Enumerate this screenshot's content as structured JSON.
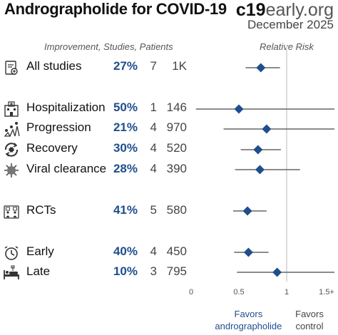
{
  "header": {
    "title": "Andrographolide for COVID-19",
    "brand_bold": "c19",
    "brand_light": "early.org",
    "date": "December 2025"
  },
  "columns": {
    "left": "Improvement, Studies, Patients",
    "right": "Relative Risk"
  },
  "colors": {
    "accent": "#1f4e8c",
    "whisker": "#666666",
    "refline": "#dcdcdc"
  },
  "chart_data": {
    "type": "forest",
    "xlim": [
      0,
      1.5
    ],
    "x_ticks": [
      "0",
      "0.5",
      "1",
      "1.5+"
    ],
    "favors_left": [
      "Favors",
      "andrographolide"
    ],
    "favors_right": [
      "Favors",
      "control"
    ],
    "rows": [
      {
        "id": "all-studies",
        "label": "All studies",
        "icon": "document-study-icon",
        "improvement": "27%",
        "studies": "7",
        "patients": "1K",
        "rr": 0.73,
        "lo": 0.57,
        "hi": 0.93
      },
      {
        "id": "hospitalization",
        "label": "Hospitalization",
        "icon": "hospital-icon",
        "improvement": "50%",
        "studies": "1",
        "patients": "146",
        "rr": 0.5,
        "lo": 0.05,
        "hi": 1.5
      },
      {
        "id": "progression",
        "label": "Progression",
        "icon": "progression-icon",
        "improvement": "21%",
        "studies": "4",
        "patients": "970",
        "rr": 0.79,
        "lo": 0.34,
        "hi": 1.5
      },
      {
        "id": "recovery",
        "label": "Recovery",
        "icon": "recovery-icon",
        "improvement": "30%",
        "studies": "4",
        "patients": "520",
        "rr": 0.7,
        "lo": 0.52,
        "hi": 0.94
      },
      {
        "id": "viral-clearance",
        "label": "Viral clearance",
        "icon": "virus-icon",
        "improvement": "28%",
        "studies": "4",
        "patients": "390",
        "rr": 0.72,
        "lo": 0.46,
        "hi": 1.14
      },
      {
        "id": "rcts",
        "label": "RCTs",
        "icon": "rct-icon",
        "improvement": "41%",
        "studies": "5",
        "patients": "580",
        "rr": 0.59,
        "lo": 0.44,
        "hi": 0.79
      },
      {
        "id": "early",
        "label": "Early",
        "icon": "clock-icon",
        "improvement": "40%",
        "studies": "4",
        "patients": "450",
        "rr": 0.6,
        "lo": 0.45,
        "hi": 0.81
      },
      {
        "id": "late",
        "label": "Late",
        "icon": "hospital-bed-icon",
        "improvement": "10%",
        "studies": "3",
        "patients": "795",
        "rr": 0.9,
        "lo": 0.48,
        "hi": 1.5
      }
    ]
  }
}
